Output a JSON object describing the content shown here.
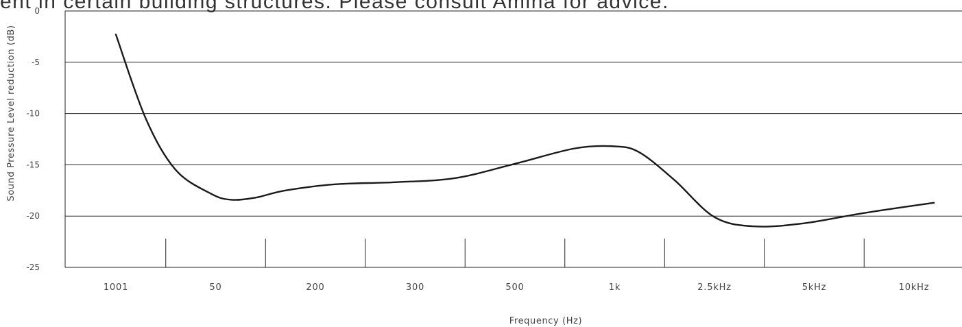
{
  "page": {
    "caption": "ent in certain building structures. Please consult Amina for advice."
  },
  "chart_data": {
    "type": "line",
    "xlabel": "Frequency (Hz)",
    "ylabel": "Sound Pressure Level reduction (dB)",
    "categories": [
      "1001",
      "50",
      "200",
      "300",
      "500",
      "1k",
      "2.5kHz",
      "5kHz",
      "10kHz"
    ],
    "y_ticks": [
      "0",
      "-5",
      "-10",
      "-15",
      "-20",
      "-25"
    ],
    "ylim": [
      -25,
      0
    ],
    "grid": "horizontal",
    "series": [
      {
        "x": [
          0,
          0.3,
          0.6,
          0.95,
          1.15,
          1.4,
          1.7,
          2.2,
          2.8,
          3.4,
          4.0,
          4.6,
          5.0,
          5.25,
          5.6,
          6.0,
          6.4,
          6.9,
          7.5,
          8.2
        ],
        "values": [
          -2.3,
          -10.5,
          -15.5,
          -17.8,
          -18.4,
          -18.2,
          -17.5,
          -16.9,
          -16.7,
          -16.3,
          -14.9,
          -13.4,
          -13.2,
          -13.8,
          -16.5,
          -20.1,
          -21.0,
          -20.7,
          -19.7,
          -18.7
        ]
      }
    ]
  }
}
